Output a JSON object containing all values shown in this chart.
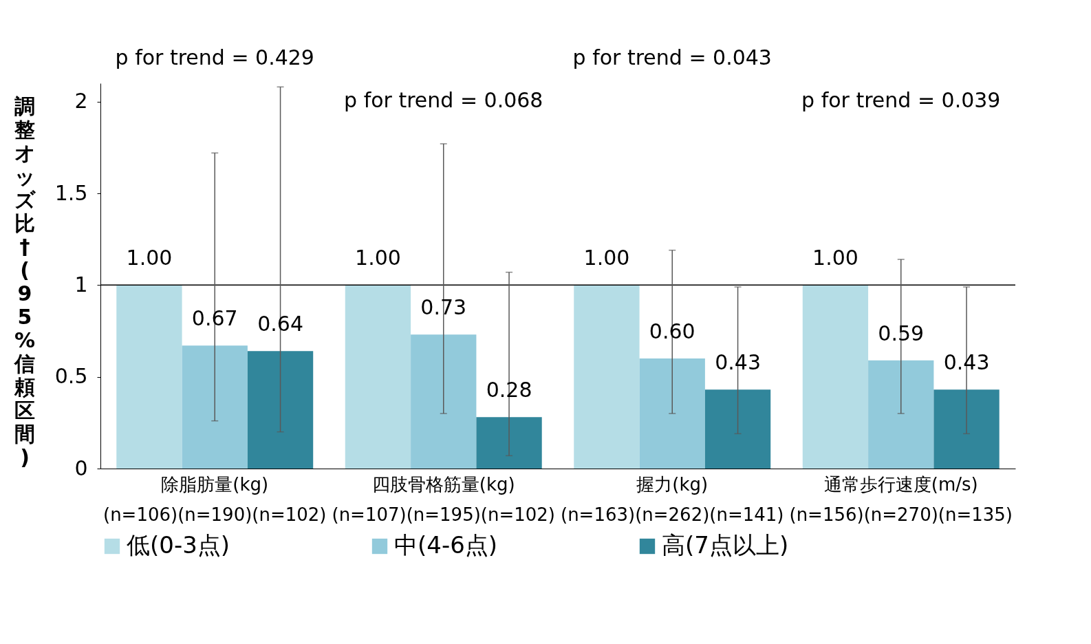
{
  "chart_data": {
    "type": "bar",
    "ylabel": "調整オッズ比†(95%信頼区間)",
    "categories": [
      "除脂肪量(kg)\n(n=106)(n=190)(n=102)",
      "四肢骨格筋量(kg)\n(n=107)(n=195)(n=102)",
      "握力(kg)\n(n=163)(n=262)(n=141)",
      "通常歩行速度(m/s)\n(n=156)(n=270)(n=135)"
    ],
    "series": [
      {
        "name": "低(0-3点)",
        "color": "#b5dde6",
        "values": [
          1,
          1,
          1,
          1
        ],
        "value_labels": [
          "1.00",
          "1.00",
          "1.00",
          "1.00"
        ]
      },
      {
        "name": "中(4-6点)",
        "color": "#92cadb",
        "values": [
          0.67,
          0.73,
          0.6,
          0.59
        ],
        "value_labels": [
          "0.67",
          "0.73",
          "0.60",
          "0.59"
        ],
        "errors": [
          [
            0.26,
            1.72
          ],
          [
            0.3,
            1.77
          ],
          [
            0.3,
            1.19
          ],
          [
            0.3,
            1.14
          ]
        ]
      },
      {
        "name": "高(7点以上)",
        "color": "#31869b",
        "values": [
          0.64,
          0.28,
          0.43,
          0.43
        ],
        "value_labels": [
          "0.64",
          "0.28",
          "0.43",
          "0.43"
        ],
        "errors": [
          [
            0.2,
            2.08
          ],
          [
            0.07,
            1.07
          ],
          [
            0.19,
            0.99
          ],
          [
            0.19,
            0.99
          ]
        ]
      }
    ],
    "ylim": [
      0,
      2.1
    ],
    "yticks": [
      0,
      0.5,
      1,
      1.5,
      2
    ],
    "ref_lines": [
      {
        "axis": "y",
        "value": 1,
        "color": "#000000"
      }
    ],
    "annotations": [
      "p for trend = 0.429",
      "p for trend = 0.068",
      "p for trend = 0.043",
      "p for trend = 0.039"
    ],
    "legend": "bottom",
    "grid": false
  }
}
